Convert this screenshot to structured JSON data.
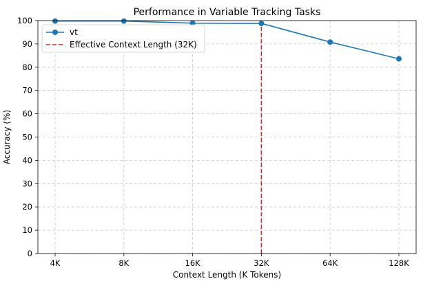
{
  "chart_data": {
    "type": "line",
    "title": "Performance in Variable Tracking Tasks",
    "xlabel": "Context Length (K Tokens)",
    "ylabel": "Accuracy (%)",
    "categories": [
      "4K",
      "8K",
      "16K",
      "32K",
      "64K",
      "128K"
    ],
    "series": [
      {
        "name": "vt",
        "values": [
          99.8,
          99.8,
          98.9,
          98.8,
          90.8,
          83.6
        ],
        "color": "#1f77b4",
        "marker": "circle"
      }
    ],
    "annotations": [
      {
        "type": "vertical-line",
        "x": "32K",
        "label": "Effective Context Length (32K)",
        "color": "#d62728",
        "style": "dashed"
      }
    ],
    "ylim": [
      0,
      100
    ],
    "yticks": [
      0,
      10,
      20,
      30,
      40,
      50,
      60,
      70,
      80,
      90,
      100
    ],
    "grid": true,
    "legend_position": "top-left"
  }
}
